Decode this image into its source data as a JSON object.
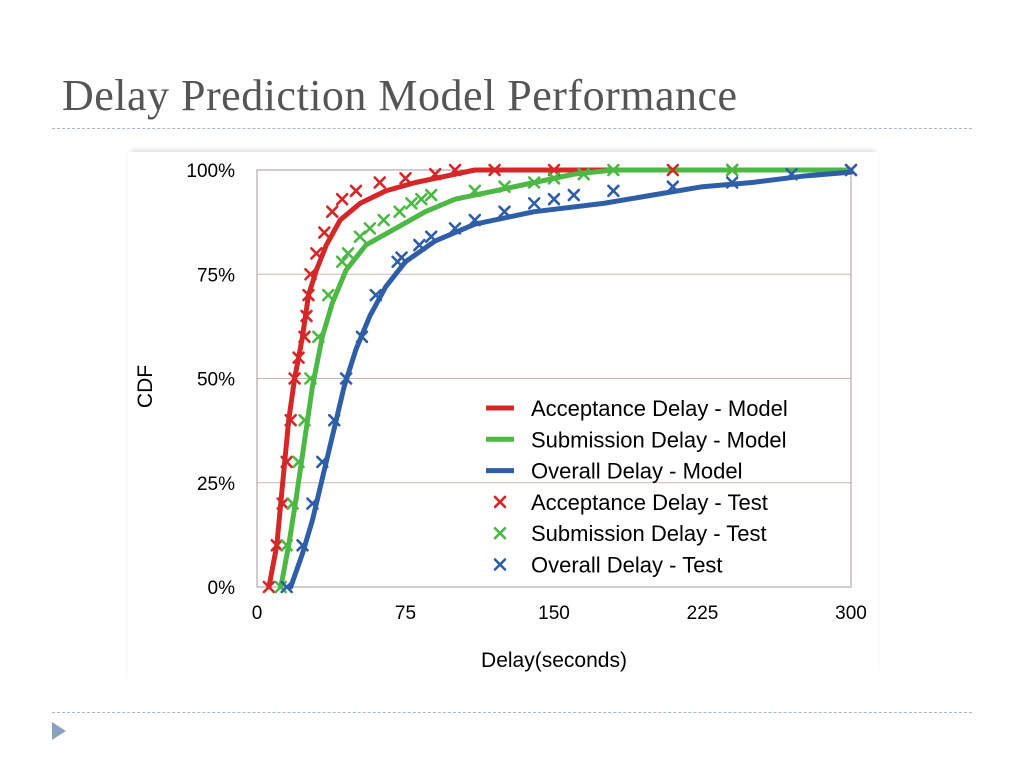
{
  "slide": {
    "title": "Delay Prediction Model Performance"
  },
  "chart_data": {
    "type": "line",
    "xlabel": "Delay(seconds)",
    "ylabel": "CDF",
    "xlim": [
      0,
      300
    ],
    "ylim": [
      0,
      100
    ],
    "x_ticks": [
      "0",
      "75",
      "150",
      "225",
      "300"
    ],
    "x_tick_values": [
      0,
      75,
      150,
      225,
      300
    ],
    "y_ticks": [
      "0%",
      "25%",
      "50%",
      "75%",
      "100%"
    ],
    "y_tick_values": [
      0,
      25,
      50,
      75,
      100
    ],
    "grid": "horizontal",
    "legend_position": "bottom-right",
    "series": [
      {
        "name": "Acceptance Delay - Model",
        "style": "line",
        "color": "#d62728",
        "points": [
          [
            6,
            0
          ],
          [
            10,
            10
          ],
          [
            13,
            25
          ],
          [
            16,
            40
          ],
          [
            19,
            50
          ],
          [
            23,
            60
          ],
          [
            26,
            70
          ],
          [
            30,
            76
          ],
          [
            35,
            82
          ],
          [
            42,
            88
          ],
          [
            52,
            92
          ],
          [
            65,
            95
          ],
          [
            80,
            97
          ],
          [
            95,
            98.5
          ],
          [
            110,
            100
          ],
          [
            300,
            100
          ]
        ]
      },
      {
        "name": "Submission Delay - Model",
        "style": "line",
        "color": "#4cb944",
        "points": [
          [
            12,
            0
          ],
          [
            16,
            10
          ],
          [
            20,
            22
          ],
          [
            24,
            35
          ],
          [
            28,
            48
          ],
          [
            33,
            60
          ],
          [
            38,
            68
          ],
          [
            45,
            76
          ],
          [
            55,
            82
          ],
          [
            70,
            86
          ],
          [
            85,
            90
          ],
          [
            100,
            93
          ],
          [
            120,
            95
          ],
          [
            140,
            97
          ],
          [
            160,
            99
          ],
          [
            180,
            100
          ],
          [
            300,
            100
          ]
        ]
      },
      {
        "name": "Overall Delay - Model",
        "style": "line",
        "color": "#2f5ea8",
        "points": [
          [
            17,
            0
          ],
          [
            23,
            8
          ],
          [
            28,
            16
          ],
          [
            33,
            26
          ],
          [
            38,
            36
          ],
          [
            44,
            48
          ],
          [
            50,
            57
          ],
          [
            57,
            65
          ],
          [
            65,
            72
          ],
          [
            75,
            78
          ],
          [
            90,
            83
          ],
          [
            110,
            87
          ],
          [
            140,
            90
          ],
          [
            175,
            92
          ],
          [
            200,
            94
          ],
          [
            225,
            96
          ],
          [
            250,
            97
          ],
          [
            275,
            98.5
          ],
          [
            300,
            99.5
          ]
        ]
      },
      {
        "name": "Acceptance Delay - Test",
        "style": "marker",
        "color": "#d62728",
        "points": [
          [
            6,
            0
          ],
          [
            10,
            10
          ],
          [
            13,
            20
          ],
          [
            15,
            30
          ],
          [
            17,
            40
          ],
          [
            19,
            50
          ],
          [
            21,
            55
          ],
          [
            24,
            60
          ],
          [
            25,
            65
          ],
          [
            26,
            70
          ],
          [
            27,
            75
          ],
          [
            30,
            80
          ],
          [
            34,
            85
          ],
          [
            38,
            90
          ],
          [
            43,
            93
          ],
          [
            50,
            95
          ],
          [
            62,
            97
          ],
          [
            75,
            98
          ],
          [
            90,
            99
          ],
          [
            100,
            100
          ],
          [
            120,
            100
          ],
          [
            150,
            100
          ],
          [
            210,
            100
          ],
          [
            240,
            100
          ],
          [
            300,
            100
          ]
        ]
      },
      {
        "name": "Submission Delay - Test",
        "style": "marker",
        "color": "#4cb944",
        "points": [
          [
            12,
            0
          ],
          [
            15,
            10
          ],
          [
            18,
            20
          ],
          [
            21,
            30
          ],
          [
            24,
            40
          ],
          [
            27,
            50
          ],
          [
            31,
            60
          ],
          [
            36,
            70
          ],
          [
            43,
            78
          ],
          [
            46,
            80
          ],
          [
            52,
            84
          ],
          [
            57,
            86
          ],
          [
            64,
            88
          ],
          [
            72,
            90
          ],
          [
            78,
            92
          ],
          [
            83,
            93
          ],
          [
            88,
            94
          ],
          [
            110,
            95
          ],
          [
            125,
            96
          ],
          [
            140,
            97
          ],
          [
            150,
            98
          ],
          [
            165,
            99
          ],
          [
            180,
            100
          ],
          [
            240,
            100
          ]
        ]
      },
      {
        "name": "Overall Delay - Test",
        "style": "marker",
        "color": "#2f5ea8",
        "points": [
          [
            15,
            0
          ],
          [
            23,
            10
          ],
          [
            28,
            20
          ],
          [
            33,
            30
          ],
          [
            39,
            40
          ],
          [
            45,
            50
          ],
          [
            53,
            60
          ],
          [
            60,
            70
          ],
          [
            71,
            78
          ],
          [
            73,
            79
          ],
          [
            82,
            82
          ],
          [
            88,
            84
          ],
          [
            100,
            86
          ],
          [
            110,
            88
          ],
          [
            125,
            90
          ],
          [
            140,
            92
          ],
          [
            150,
            93
          ],
          [
            160,
            94
          ],
          [
            180,
            95
          ],
          [
            210,
            96
          ],
          [
            240,
            97
          ],
          [
            270,
            99
          ],
          [
            300,
            100
          ]
        ]
      }
    ]
  }
}
